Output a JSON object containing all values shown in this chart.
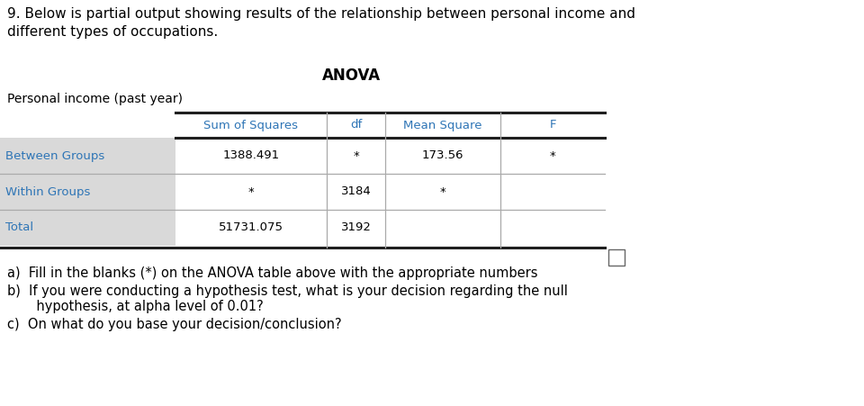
{
  "title_text": "9. Below is partial output showing results of the relationship between personal income and\ndifferent types of occupations.",
  "anova_title": "ANOVA",
  "subtitle": "Personal income (past year)",
  "col_headers": [
    "",
    "Sum of Squares",
    "df",
    "Mean Square",
    "F"
  ],
  "rows": [
    [
      "Between Groups",
      "1388.491",
      "*",
      "173.56",
      "*"
    ],
    [
      "Within Groups",
      "*",
      "3184",
      "*",
      ""
    ],
    [
      "Total",
      "51731.075",
      "3192",
      "",
      ""
    ]
  ],
  "row_label_color": "#2E75B6",
  "header_color": "#2E75B6",
  "bg_color": "#ffffff",
  "table_bg_alt": "#D9D9D9",
  "q_a": "a)  Fill in the blanks (*) on the ANOVA table above with the appropriate numbers",
  "q_b1": "b)  If you were conducting a hypothesis test, what is your decision regarding the null",
  "q_b2": "       hypothesis, at alpha level of 0.01?",
  "q_c": "c)  On what do you base your decision/conclusion?"
}
